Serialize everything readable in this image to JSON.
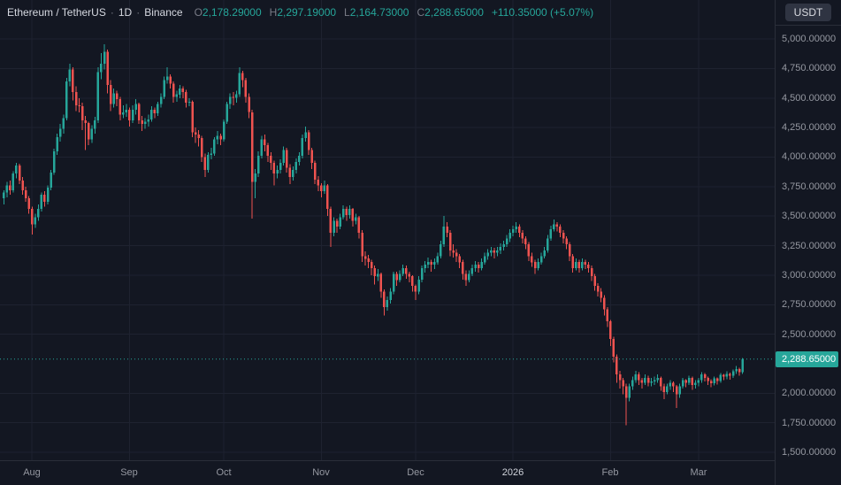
{
  "legend": {
    "symbol": "Ethereum / TetherUS",
    "separator": "·",
    "interval": "1D",
    "exchange": "Binance",
    "ohlc": [
      {
        "k": "O",
        "v": "2,178.29000"
      },
      {
        "k": "H",
        "v": "2,297.19000"
      },
      {
        "k": "L",
        "v": "2,164.73000"
      },
      {
        "k": "C",
        "v": "2,288.65000"
      }
    ],
    "change": "+110.35000 (+5.07%)"
  },
  "price_axis": {
    "currency": "USDT"
  },
  "chart_data": {
    "type": "candlestick",
    "title": "Ethereum / TetherUS · 1D · Binance",
    "visible_price_range": [
      1500,
      5000
    ],
    "scale": {
      "price_top": 5330,
      "price_bottom": 1433
    },
    "grid": true,
    "colors": {
      "background": "#131722",
      "grid": "#1e2230",
      "axis_text": "#9598a1",
      "text_bright": "#d1d4dc",
      "up": "#26a69a",
      "down": "#ef5350",
      "label_muted": "#787b86"
    },
    "last_price": {
      "value": 2288.65,
      "label": "2,288.65000",
      "direction": "up"
    },
    "y_axis": {
      "tick_step": 250,
      "ticks": [
        {
          "v": 5000,
          "label": "5,000.00000"
        },
        {
          "v": 4750,
          "label": "4,750.00000"
        },
        {
          "v": 4500,
          "label": "4,500.00000"
        },
        {
          "v": 4250,
          "label": "4,250.00000"
        },
        {
          "v": 4000,
          "label": "4,000.00000"
        },
        {
          "v": 3750,
          "label": "3,750.00000"
        },
        {
          "v": 3500,
          "label": "3,500.00000"
        },
        {
          "v": 3250,
          "label": "3,250.00000"
        },
        {
          "v": 3000,
          "label": "3,000.00000"
        },
        {
          "v": 2750,
          "label": "2,750.00000"
        },
        {
          "v": 2500,
          "label": "2,500.00000"
        },
        {
          "v": 2000,
          "label": "2,000.00000"
        },
        {
          "v": 1750,
          "label": "1,750.00000"
        },
        {
          "v": 1500,
          "label": "1,500.00000"
        }
      ]
    },
    "x_axis": {
      "months": [
        {
          "label": "Aug",
          "index": 9
        },
        {
          "label": "Sep",
          "index": 40
        },
        {
          "label": "Oct",
          "index": 70
        },
        {
          "label": "Nov",
          "index": 101
        },
        {
          "label": "Dec",
          "index": 131
        },
        {
          "label": "2026",
          "index": 162,
          "year": true
        },
        {
          "label": "Feb",
          "index": 193
        },
        {
          "label": "Mar",
          "index": 221
        }
      ]
    },
    "candles": [
      [
        3650,
        3720,
        3600,
        3700
      ],
      [
        3700,
        3790,
        3660,
        3760
      ],
      [
        3760,
        3800,
        3680,
        3720
      ],
      [
        3720,
        3880,
        3700,
        3860
      ],
      [
        3860,
        3950,
        3820,
        3930
      ],
      [
        3930,
        3945,
        3770,
        3800
      ],
      [
        3800,
        3830,
        3680,
        3720
      ],
      [
        3720,
        3750,
        3620,
        3650
      ],
      [
        3650,
        3670,
        3520,
        3560
      ],
      [
        3560,
        3580,
        3345,
        3430
      ],
      [
        3430,
        3520,
        3400,
        3490
      ],
      [
        3490,
        3600,
        3460,
        3560
      ],
      [
        3560,
        3700,
        3540,
        3680
      ],
      [
        3680,
        3710,
        3580,
        3620
      ],
      [
        3620,
        3760,
        3600,
        3740
      ],
      [
        3740,
        3890,
        3720,
        3870
      ],
      [
        3870,
        4070,
        3850,
        4050
      ],
      [
        4050,
        4200,
        4020,
        4170
      ],
      [
        4170,
        4280,
        4130,
        4240
      ],
      [
        4240,
        4360,
        4200,
        4330
      ],
      [
        4330,
        4670,
        4310,
        4640
      ],
      [
        4640,
        4790,
        4600,
        4740
      ],
      [
        4740,
        4760,
        4480,
        4550
      ],
      [
        4550,
        4600,
        4390,
        4440
      ],
      [
        4440,
        4500,
        4380,
        4430
      ],
      [
        4430,
        4460,
        4230,
        4310
      ],
      [
        4310,
        4350,
        4060,
        4290
      ],
      [
        4290,
        4300,
        4100,
        4150
      ],
      [
        4150,
        4270,
        4120,
        4240
      ],
      [
        4240,
        4340,
        4200,
        4310
      ],
      [
        4310,
        4760,
        4290,
        4720
      ],
      [
        4720,
        4880,
        4660,
        4790
      ],
      [
        4790,
        4955,
        4740,
        4890
      ],
      [
        4890,
        4910,
        4540,
        4610
      ],
      [
        4610,
        4650,
        4390,
        4450
      ],
      [
        4450,
        4580,
        4420,
        4540
      ],
      [
        4540,
        4560,
        4430,
        4490
      ],
      [
        4490,
        4510,
        4310,
        4360
      ],
      [
        4360,
        4440,
        4330,
        4380
      ],
      [
        4380,
        4450,
        4340,
        4400
      ],
      [
        4400,
        4420,
        4260,
        4310
      ],
      [
        4310,
        4440,
        4290,
        4400
      ],
      [
        4400,
        4490,
        4360,
        4450
      ],
      [
        4450,
        4460,
        4280,
        4310
      ],
      [
        4310,
        4350,
        4220,
        4280
      ],
      [
        4280,
        4330,
        4240,
        4300
      ],
      [
        4300,
        4360,
        4260,
        4320
      ],
      [
        4320,
        4430,
        4300,
        4400
      ],
      [
        4400,
        4420,
        4330,
        4370
      ],
      [
        4370,
        4470,
        4350,
        4450
      ],
      [
        4450,
        4540,
        4420,
        4510
      ],
      [
        4510,
        4680,
        4490,
        4650
      ],
      [
        4650,
        4760,
        4620,
        4680
      ],
      [
        4680,
        4700,
        4580,
        4620
      ],
      [
        4620,
        4640,
        4460,
        4510
      ],
      [
        4510,
        4560,
        4470,
        4530
      ],
      [
        4530,
        4610,
        4500,
        4580
      ],
      [
        4580,
        4600,
        4500,
        4550
      ],
      [
        4550,
        4570,
        4420,
        4460
      ],
      [
        4460,
        4500,
        4430,
        4470
      ],
      [
        4470,
        4480,
        4170,
        4210
      ],
      [
        4210,
        4250,
        4120,
        4190
      ],
      [
        4190,
        4230,
        4090,
        4160
      ],
      [
        4160,
        4180,
        3960,
        4000
      ],
      [
        4000,
        4030,
        3830,
        3890
      ],
      [
        3890,
        4040,
        3870,
        4020
      ],
      [
        4020,
        4080,
        3980,
        4030
      ],
      [
        4030,
        4170,
        4010,
        4150
      ],
      [
        4150,
        4220,
        4110,
        4180
      ],
      [
        4180,
        4200,
        4100,
        4150
      ],
      [
        4150,
        4320,
        4130,
        4300
      ],
      [
        4300,
        4470,
        4280,
        4450
      ],
      [
        4450,
        4540,
        4410,
        4510
      ],
      [
        4510,
        4550,
        4440,
        4500
      ],
      [
        4500,
        4560,
        4460,
        4530
      ],
      [
        4530,
        4760,
        4510,
        4710
      ],
      [
        4710,
        4730,
        4590,
        4650
      ],
      [
        4650,
        4670,
        4460,
        4510
      ],
      [
        4510,
        4540,
        4330,
        4380
      ],
      [
        4380,
        4400,
        3480,
        3790
      ],
      [
        3790,
        3900,
        3650,
        3860
      ],
      [
        3860,
        4050,
        3830,
        4010
      ],
      [
        4010,
        4180,
        3990,
        4150
      ],
      [
        4150,
        4190,
        4050,
        4100
      ],
      [
        4100,
        4120,
        3960,
        4010
      ],
      [
        4010,
        4040,
        3890,
        3950
      ],
      [
        3950,
        3970,
        3760,
        3860
      ],
      [
        3860,
        3930,
        3820,
        3890
      ],
      [
        3890,
        3980,
        3860,
        3950
      ],
      [
        3950,
        4090,
        3930,
        4060
      ],
      [
        4060,
        4080,
        3870,
        3910
      ],
      [
        3910,
        3940,
        3770,
        3830
      ],
      [
        3830,
        3920,
        3800,
        3890
      ],
      [
        3890,
        3990,
        3860,
        3960
      ],
      [
        3960,
        4040,
        3930,
        4010
      ],
      [
        4010,
        4190,
        3990,
        4160
      ],
      [
        4160,
        4260,
        4130,
        4210
      ],
      [
        4210,
        4230,
        4020,
        4060
      ],
      [
        4060,
        4080,
        3900,
        3950
      ],
      [
        3950,
        3970,
        3770,
        3810
      ],
      [
        3810,
        3840,
        3710,
        3760
      ],
      [
        3760,
        3780,
        3660,
        3710
      ],
      [
        3710,
        3800,
        3690,
        3760
      ],
      [
        3760,
        3770,
        3500,
        3560
      ],
      [
        3560,
        3580,
        3240,
        3360
      ],
      [
        3360,
        3490,
        3330,
        3460
      ],
      [
        3460,
        3480,
        3360,
        3410
      ],
      [
        3410,
        3520,
        3390,
        3490
      ],
      [
        3490,
        3590,
        3470,
        3560
      ],
      [
        3560,
        3580,
        3460,
        3510
      ],
      [
        3510,
        3590,
        3480,
        3560
      ],
      [
        3560,
        3570,
        3410,
        3460
      ],
      [
        3460,
        3520,
        3430,
        3490
      ],
      [
        3490,
        3500,
        3310,
        3360
      ],
      [
        3360,
        3380,
        3110,
        3160
      ],
      [
        3160,
        3200,
        3080,
        3140
      ],
      [
        3140,
        3170,
        3060,
        3110
      ],
      [
        3110,
        3130,
        3000,
        3060
      ],
      [
        3060,
        3080,
        2920,
        2990
      ],
      [
        2990,
        3050,
        2950,
        3010
      ],
      [
        3010,
        3020,
        2810,
        2860
      ],
      [
        2860,
        2880,
        2660,
        2730
      ],
      [
        2730,
        2820,
        2700,
        2790
      ],
      [
        2790,
        2890,
        2760,
        2860
      ],
      [
        2860,
        3030,
        2840,
        3010
      ],
      [
        3010,
        3030,
        2910,
        2960
      ],
      [
        2960,
        3040,
        2940,
        3010
      ],
      [
        3010,
        3090,
        2990,
        3060
      ],
      [
        3060,
        3080,
        2970,
        3010
      ],
      [
        3010,
        3030,
        2940,
        2990
      ],
      [
        2990,
        3000,
        2860,
        2910
      ],
      [
        2910,
        2920,
        2790,
        2860
      ],
      [
        2860,
        2990,
        2840,
        2960
      ],
      [
        2960,
        3080,
        2940,
        3060
      ],
      [
        3060,
        3120,
        3020,
        3090
      ],
      [
        3090,
        3150,
        3060,
        3110
      ],
      [
        3110,
        3130,
        3030,
        3090
      ],
      [
        3090,
        3140,
        3050,
        3110
      ],
      [
        3110,
        3190,
        3090,
        3160
      ],
      [
        3160,
        3290,
        3140,
        3260
      ],
      [
        3260,
        3500,
        3240,
        3410
      ],
      [
        3410,
        3450,
        3320,
        3360
      ],
      [
        3360,
        3380,
        3160,
        3210
      ],
      [
        3210,
        3260,
        3150,
        3190
      ],
      [
        3190,
        3220,
        3110,
        3160
      ],
      [
        3160,
        3180,
        3060,
        3110
      ],
      [
        3110,
        3130,
        2960,
        3010
      ],
      [
        3010,
        3040,
        2910,
        2960
      ],
      [
        2960,
        3040,
        2940,
        3010
      ],
      [
        3010,
        3090,
        2990,
        3060
      ],
      [
        3060,
        3120,
        3030,
        3090
      ],
      [
        3090,
        3110,
        3020,
        3060
      ],
      [
        3060,
        3140,
        3040,
        3110
      ],
      [
        3110,
        3190,
        3090,
        3160
      ],
      [
        3160,
        3220,
        3130,
        3190
      ],
      [
        3190,
        3240,
        3160,
        3210
      ],
      [
        3210,
        3230,
        3140,
        3190
      ],
      [
        3190,
        3240,
        3160,
        3210
      ],
      [
        3210,
        3270,
        3180,
        3240
      ],
      [
        3240,
        3290,
        3210,
        3260
      ],
      [
        3260,
        3340,
        3240,
        3310
      ],
      [
        3310,
        3390,
        3280,
        3360
      ],
      [
        3360,
        3420,
        3330,
        3390
      ],
      [
        3390,
        3450,
        3360,
        3410
      ],
      [
        3410,
        3430,
        3320,
        3360
      ],
      [
        3360,
        3380,
        3270,
        3310
      ],
      [
        3310,
        3330,
        3220,
        3260
      ],
      [
        3260,
        3280,
        3120,
        3160
      ],
      [
        3160,
        3190,
        3070,
        3110
      ],
      [
        3110,
        3130,
        3010,
        3060
      ],
      [
        3060,
        3140,
        3040,
        3110
      ],
      [
        3110,
        3190,
        3090,
        3160
      ],
      [
        3160,
        3240,
        3140,
        3210
      ],
      [
        3210,
        3340,
        3190,
        3310
      ],
      [
        3310,
        3420,
        3290,
        3390
      ],
      [
        3390,
        3470,
        3370,
        3430
      ],
      [
        3430,
        3450,
        3370,
        3410
      ],
      [
        3410,
        3430,
        3320,
        3360
      ],
      [
        3360,
        3380,
        3270,
        3310
      ],
      [
        3310,
        3330,
        3220,
        3260
      ],
      [
        3260,
        3280,
        3120,
        3160
      ],
      [
        3160,
        3180,
        3020,
        3060
      ],
      [
        3060,
        3140,
        3040,
        3110
      ],
      [
        3110,
        3130,
        3020,
        3060
      ],
      [
        3060,
        3140,
        3040,
        3110
      ],
      [
        3110,
        3130,
        3050,
        3090
      ],
      [
        3090,
        3110,
        3020,
        3060
      ],
      [
        3060,
        3080,
        2950,
        2990
      ],
      [
        2990,
        3010,
        2870,
        2910
      ],
      [
        2910,
        2930,
        2820,
        2860
      ],
      [
        2860,
        2890,
        2770,
        2810
      ],
      [
        2810,
        2830,
        2660,
        2710
      ],
      [
        2710,
        2730,
        2560,
        2610
      ],
      [
        2610,
        2620,
        2400,
        2460
      ],
      [
        2460,
        2480,
        2260,
        2310
      ],
      [
        2310,
        2330,
        2090,
        2160
      ],
      [
        2160,
        2190,
        2040,
        2110
      ],
      [
        2110,
        2130,
        1990,
        2060
      ],
      [
        2060,
        2080,
        1730,
        1960
      ],
      [
        1960,
        2080,
        1930,
        2060
      ],
      [
        2060,
        2140,
        2030,
        2110
      ],
      [
        2110,
        2190,
        2090,
        2160
      ],
      [
        2160,
        2180,
        2070,
        2110
      ],
      [
        2110,
        2130,
        2040,
        2090
      ],
      [
        2090,
        2160,
        2070,
        2130
      ],
      [
        2130,
        2150,
        2060,
        2090
      ],
      [
        2090,
        2130,
        2060,
        2100
      ],
      [
        2100,
        2140,
        2070,
        2110
      ],
      [
        2110,
        2160,
        2090,
        2130
      ],
      [
        2130,
        2140,
        2020,
        2060
      ],
      [
        2060,
        2080,
        1950,
        2010
      ],
      [
        2010,
        2080,
        1990,
        2060
      ],
      [
        2060,
        2110,
        2030,
        2090
      ],
      [
        2090,
        2100,
        2010,
        2060
      ],
      [
        2060,
        2070,
        1875,
        1990
      ],
      [
        1990,
        2080,
        1960,
        2060
      ],
      [
        2060,
        2130,
        2040,
        2110
      ],
      [
        2110,
        2120,
        2050,
        2090
      ],
      [
        2090,
        2150,
        2070,
        2130
      ],
      [
        2130,
        2140,
        2030,
        2070
      ],
      [
        2070,
        2110,
        2040,
        2090
      ],
      [
        2090,
        2130,
        2060,
        2110
      ],
      [
        2110,
        2180,
        2090,
        2160
      ],
      [
        2160,
        2170,
        2100,
        2130
      ],
      [
        2130,
        2140,
        2070,
        2105
      ],
      [
        2105,
        2120,
        2050,
        2085
      ],
      [
        2085,
        2140,
        2065,
        2125
      ],
      [
        2125,
        2135,
        2075,
        2105
      ],
      [
        2105,
        2170,
        2090,
        2155
      ],
      [
        2155,
        2165,
        2110,
        2140
      ],
      [
        2140,
        2185,
        2120,
        2165
      ],
      [
        2165,
        2175,
        2115,
        2150
      ],
      [
        2150,
        2200,
        2130,
        2185
      ],
      [
        2185,
        2230,
        2165,
        2205
      ],
      [
        2205,
        2215,
        2150,
        2178
      ],
      [
        2178.29,
        2297.19,
        2164.73,
        2288.65
      ]
    ]
  }
}
